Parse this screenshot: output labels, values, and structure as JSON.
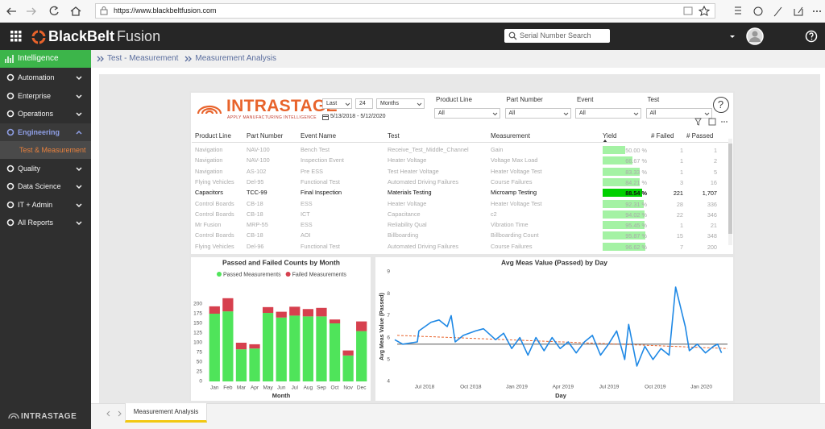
{
  "browser": {
    "url": "https://www.blackbeltfusion.com"
  },
  "header": {
    "brand_bold": "BlackBelt",
    "brand_light": "Fusion",
    "search_placeholder": "Serial Number Search"
  },
  "sidebar": {
    "top": "Intelligence",
    "items": [
      {
        "label": "Automation"
      },
      {
        "label": "Enterprise"
      },
      {
        "label": "Operations"
      },
      {
        "label": "Engineering",
        "expanded": true
      },
      {
        "label": "Test & Measurement",
        "sub": true
      },
      {
        "label": "Quality"
      },
      {
        "label": "Data Science"
      },
      {
        "label": "IT + Admin"
      },
      {
        "label": "All Reports"
      }
    ],
    "footer": "INTRASTAGE"
  },
  "breadcrumb": [
    "Test - Measurement",
    "Measurement Analysis"
  ],
  "report": {
    "logo": "INTRASTAGE",
    "tagline": "APPLY MANUFACTURING INTELLIGENCE",
    "period": {
      "label": "Last",
      "count": "24",
      "unit": "Months",
      "range": "5/13/2018 - 5/12/2020"
    },
    "filters": [
      {
        "label": "Product Line",
        "value": "All"
      },
      {
        "label": "Part Number",
        "value": "All"
      },
      {
        "label": "Event",
        "value": "All"
      },
      {
        "label": "Test",
        "value": "All"
      }
    ],
    "help": "?"
  },
  "table": {
    "columns": [
      "Product Line",
      "Part Number",
      "Event Name",
      "Test",
      "Measurement",
      "Yield",
      "# Failed",
      "# Passed"
    ],
    "highlight_row": 4,
    "rows": [
      {
        "product_line": "Navigation",
        "part_number": "NAV-100",
        "event": "Bench Test",
        "test": "Receive_Test_Middle_Channel",
        "measurement": "Gain",
        "yield": 50.0,
        "yield_label": "50.00 %",
        "failed": "1",
        "passed": "1"
      },
      {
        "product_line": "Navigation",
        "part_number": "NAV-100",
        "event": "Inspection Event",
        "test": "Heater Voltage",
        "measurement": "Voltage Max Load",
        "yield": 66.67,
        "yield_label": "66.67 %",
        "failed": "1",
        "passed": "2"
      },
      {
        "product_line": "Navigation",
        "part_number": "AS-102",
        "event": "Pre ESS",
        "test": "Test Heater Voltage",
        "measurement": "Heater Voltage Test",
        "yield": 83.33,
        "yield_label": "83.33 %",
        "failed": "1",
        "passed": "5"
      },
      {
        "product_line": "Flying Vehicles",
        "part_number": "Del-95",
        "event": "Functional Test",
        "test": "Automated Driving Failures",
        "measurement": "Course Failures",
        "yield": 84.21,
        "yield_label": "84.21 %",
        "failed": "3",
        "passed": "16"
      },
      {
        "product_line": "Capacitors",
        "part_number": "TCC-99",
        "event": "Final Inspection",
        "test": "Materials Testing",
        "measurement": "Microamp Testing",
        "yield": 88.54,
        "yield_label": "88.54 %",
        "failed": "221",
        "passed": "1,707"
      },
      {
        "product_line": "Control Boards",
        "part_number": "CB-18",
        "event": "ESS",
        "test": "Heater Voltage",
        "measurement": "Heater Voltage Test",
        "yield": 92.31,
        "yield_label": "92.31 %",
        "failed": "28",
        "passed": "336"
      },
      {
        "product_line": "Control Boards",
        "part_number": "CB-18",
        "event": "ICT",
        "test": "Capacitance",
        "measurement": "c2",
        "yield": 94.02,
        "yield_label": "94.02 %",
        "failed": "22",
        "passed": "346"
      },
      {
        "product_line": "Mr Fusion",
        "part_number": "MRP-55",
        "event": "ESS",
        "test": "Reliability Qual",
        "measurement": "Vibration Time",
        "yield": 95.45,
        "yield_label": "95.45 %",
        "failed": "1",
        "passed": "21"
      },
      {
        "product_line": "Control Boards",
        "part_number": "CB-18",
        "event": "AOI",
        "test": "Billboarding",
        "measurement": "Billboarding Count",
        "yield": 95.87,
        "yield_label": "95.87 %",
        "failed": "15",
        "passed": "348"
      },
      {
        "product_line": "Flying Vehicles",
        "part_number": "Del-96",
        "event": "Functional Test",
        "test": "Automated Driving Failures",
        "measurement": "Course Failures",
        "yield": 96.62,
        "yield_label": "96.62 %",
        "failed": "7",
        "passed": "200"
      }
    ]
  },
  "tabs": [
    "Measurement Analysis"
  ],
  "charts": [
    {
      "type": "bar",
      "stacked": true,
      "title": "Passed and Failed Counts by Month",
      "x_label": "Month",
      "categories": [
        "Jan",
        "Feb",
        "Mar",
        "Apr",
        "May",
        "Jun",
        "Jul",
        "Aug",
        "Sep",
        "Oct",
        "Nov",
        "Dec"
      ],
      "series": [
        {
          "name": "Passed Measurements",
          "color": "#4fe45a",
          "values": [
            175,
            181,
            83,
            85,
            177,
            165,
            170,
            168,
            168,
            150,
            67,
            130
          ]
        },
        {
          "name": "Failed Measurements",
          "color": "#d6404e",
          "values": [
            19,
            34,
            17,
            11,
            15,
            15,
            23,
            19,
            22,
            10,
            13,
            25
          ]
        }
      ],
      "ylim": [
        0,
        250
      ],
      "yticks": [
        0,
        25,
        50,
        75,
        100,
        125,
        150,
        175,
        200
      ],
      "legend": "top"
    },
    {
      "type": "line",
      "title": "Avg Meas Value (Passed) by Day",
      "x_label": "Day",
      "y_label": "Avg Meas Value (Passed)",
      "x": [
        4.06,
        4.58,
        5.53,
        5.63,
        6.42,
        6.94,
        7.47,
        7.73,
        7.99,
        8.52,
        9.31,
        9.83,
        10.62,
        11.14,
        11.67,
        12.19,
        12.72,
        13.24,
        13.77,
        14.29,
        14.81,
        15.34,
        15.86,
        16.39,
        16.91,
        17.44,
        17.96,
        18.49,
        19.01,
        19.27,
        19.8,
        20.32,
        20.85,
        21.37,
        21.9,
        22.32,
        22.95,
        23.21,
        23.73,
        24.26,
        24.78,
        25.05,
        25.31
      ],
      "series": [
        {
          "color": "#1e88e5",
          "values": [
            5.9,
            5.7,
            5.8,
            6.3,
            6.7,
            6.8,
            6.5,
            7.0,
            5.8,
            6.1,
            6.3,
            6.4,
            5.9,
            6.2,
            5.5,
            6.0,
            5.2,
            6.0,
            5.4,
            6.0,
            5.5,
            5.8,
            5.3,
            5.8,
            6.1,
            5.2,
            5.7,
            6.3,
            5.0,
            6.6,
            4.7,
            5.6,
            5.0,
            5.5,
            5.2,
            8.3,
            6.5,
            5.4,
            5.7,
            5.3,
            5.6,
            5.7,
            5.3
          ]
        }
      ],
      "average_line": {
        "value": 5.7,
        "color": "#777777"
      },
      "trend_line": {
        "start": 6.1,
        "end": 5.5,
        "color": "#e8632b"
      },
      "xlim": [
        3.8,
        25.8
      ],
      "xticks": [
        {
          "value": 6,
          "label": "Jul 2018"
        },
        {
          "value": 9,
          "label": "Oct 2018"
        },
        {
          "value": 12,
          "label": "Jan 2019"
        },
        {
          "value": 15,
          "label": "Apr 2019"
        },
        {
          "value": 18,
          "label": "Jul 2019"
        },
        {
          "value": 21,
          "label": "Oct 2019"
        },
        {
          "value": 24,
          "label": "Jan 2020"
        }
      ],
      "ylim": [
        4,
        9
      ],
      "yticks": [
        4,
        5,
        6,
        7,
        8,
        9
      ]
    }
  ]
}
